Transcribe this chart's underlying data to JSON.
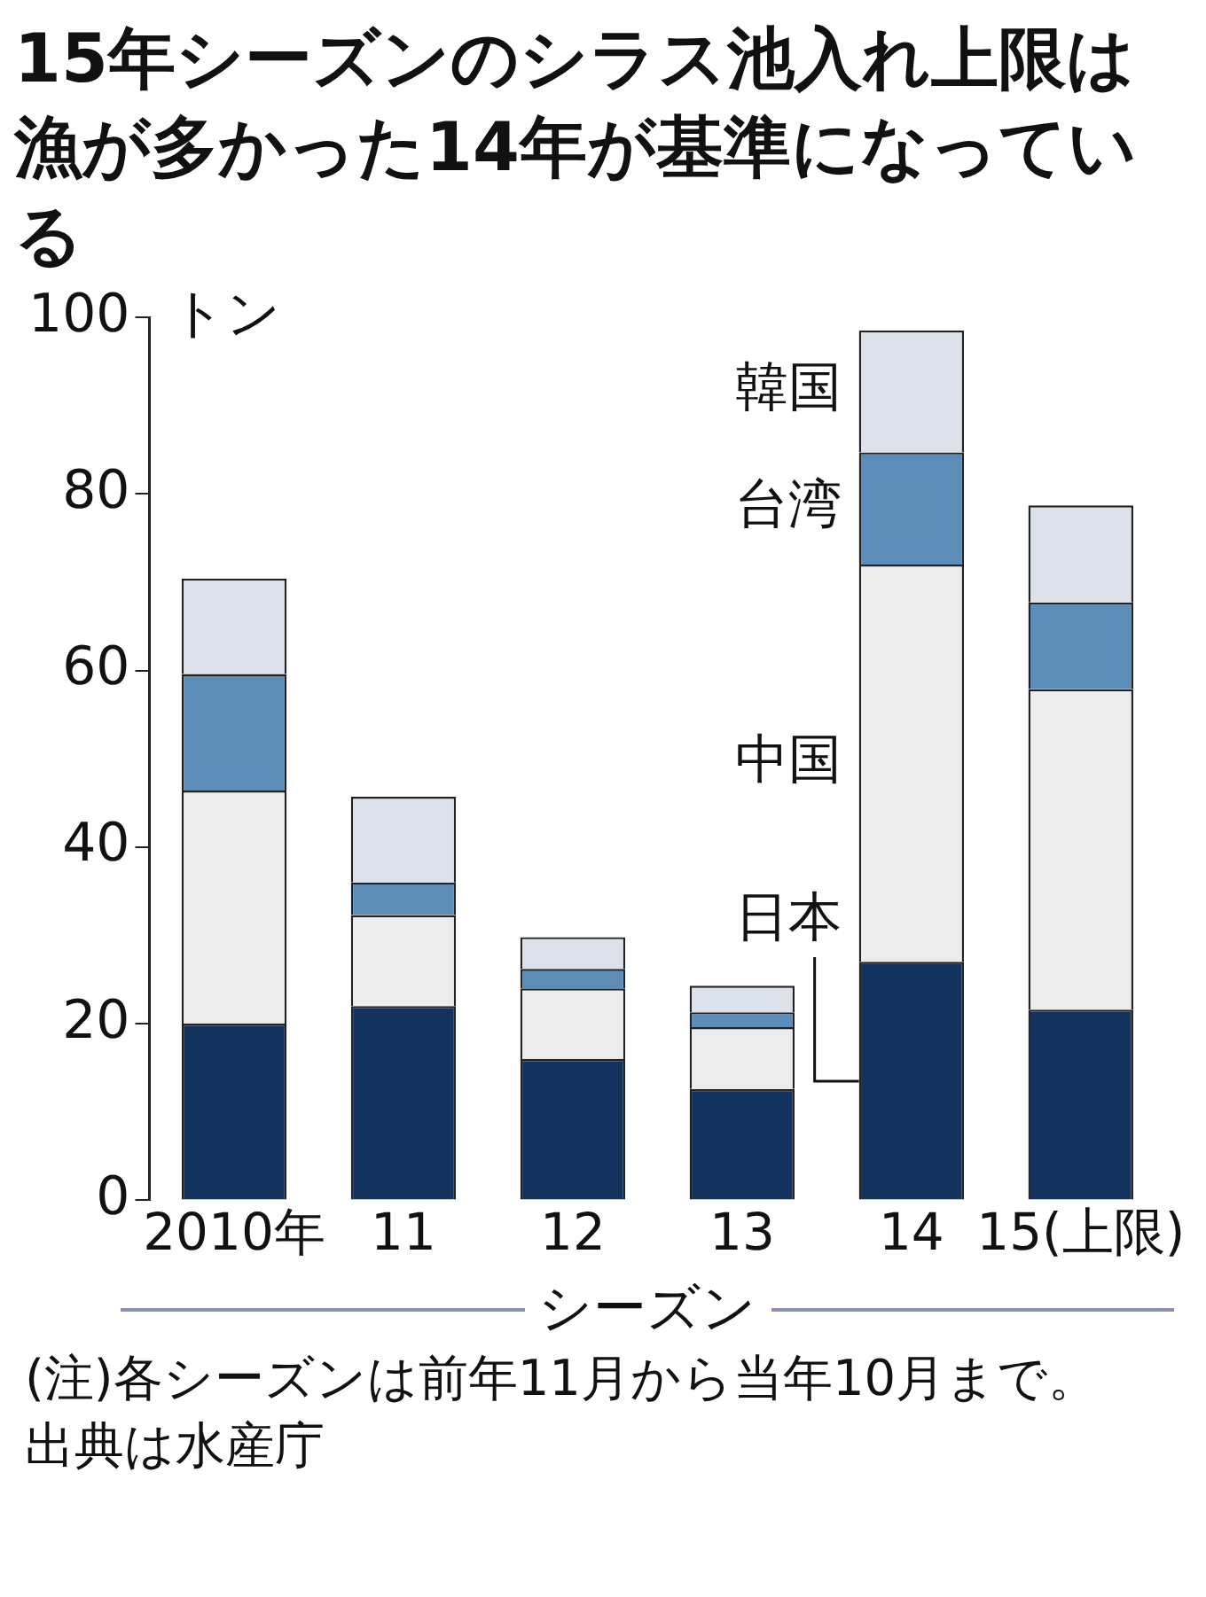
{
  "chart_data": {
    "type": "bar",
    "title": "15年シーズンのシラス池入れ上限は漁が多かった14年が基準になっている",
    "categories": [
      "2010年",
      "11",
      "12",
      "13",
      "14",
      "15(上限)"
    ],
    "series": [
      {
        "name": "日本",
        "color": "#14325e",
        "values": [
          20,
          22,
          16,
          12.6,
          27,
          21.6
        ]
      },
      {
        "name": "中国",
        "color": "#ececec",
        "values": [
          26.4,
          10.3,
          8,
          7,
          45,
          36.3
        ]
      },
      {
        "name": "台湾",
        "color": "#5b8db8",
        "values": [
          13.2,
          3.7,
          2.2,
          1.7,
          12.7,
          9.8
        ]
      },
      {
        "name": "韓国",
        "color": "#dde1ea",
        "values": [
          10.8,
          9.7,
          3.6,
          3,
          13.8,
          11
        ]
      }
    ],
    "stacked": true,
    "ylabel": "トン",
    "xlabel": "シーズン",
    "ylim": [
      0,
      100
    ],
    "yticks": [
      0,
      20,
      40,
      60,
      80,
      100
    ],
    "grid": false,
    "annotations": [
      "(注)各シーズンは前年11月から当年10月まで。出典は水産庁"
    ]
  }
}
